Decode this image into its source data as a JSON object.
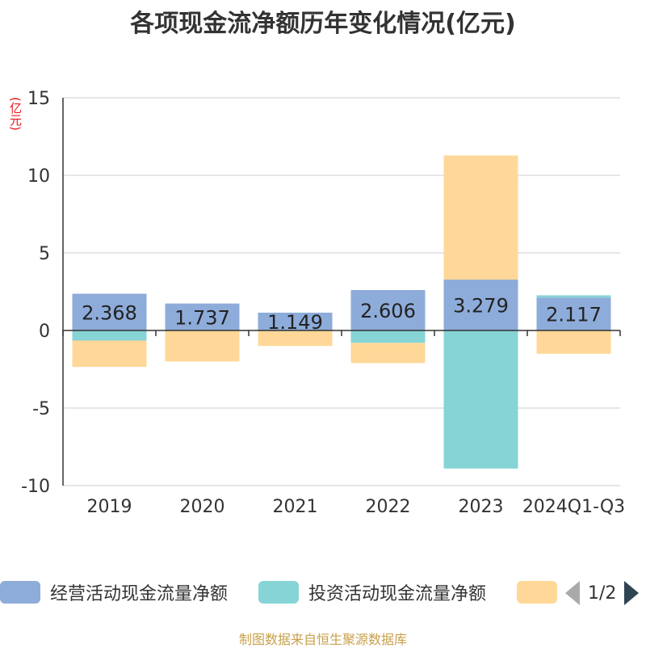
{
  "title": "各项现金流净额历年变化情况(亿元)",
  "source": "制图数据来自恒生聚源数据库",
  "legend": {
    "items": [
      {
        "label": "经营活动现金流量净额",
        "color": "#8eacd9"
      },
      {
        "label": "投资活动现金流量净额",
        "color": "#86d4d6"
      },
      {
        "label": "",
        "color": "#ffd899"
      }
    ],
    "page": "1/2"
  },
  "chart_data": {
    "type": "bar",
    "stacked": true,
    "ylabel": "(亿元)",
    "ylim": [
      -10,
      15
    ],
    "yticks": [
      15,
      10,
      5,
      0,
      -5,
      -10
    ],
    "grid": true,
    "legend_position": "bottom",
    "categories": [
      "2019",
      "2020",
      "2021",
      "2022",
      "2023",
      "2024Q1-Q3"
    ],
    "series": [
      {
        "name": "经营活动现金流量净额",
        "color": "#8eacd9",
        "values": [
          2.368,
          1.737,
          1.149,
          2.606,
          3.279,
          2.117
        ],
        "labels": [
          "2.368",
          "1.737",
          "1.149",
          "2.606",
          "3.279",
          "2.117"
        ]
      },
      {
        "name": "投资活动现金流量净额",
        "color": "#86d4d6",
        "values": [
          -0.65,
          0.0,
          0.0,
          -0.8,
          -8.9,
          0.15
        ]
      },
      {
        "name": "",
        "color": "#ffd899",
        "values": [
          -1.7,
          -2.0,
          -1.0,
          -1.3,
          8.0,
          -1.5
        ]
      }
    ]
  }
}
